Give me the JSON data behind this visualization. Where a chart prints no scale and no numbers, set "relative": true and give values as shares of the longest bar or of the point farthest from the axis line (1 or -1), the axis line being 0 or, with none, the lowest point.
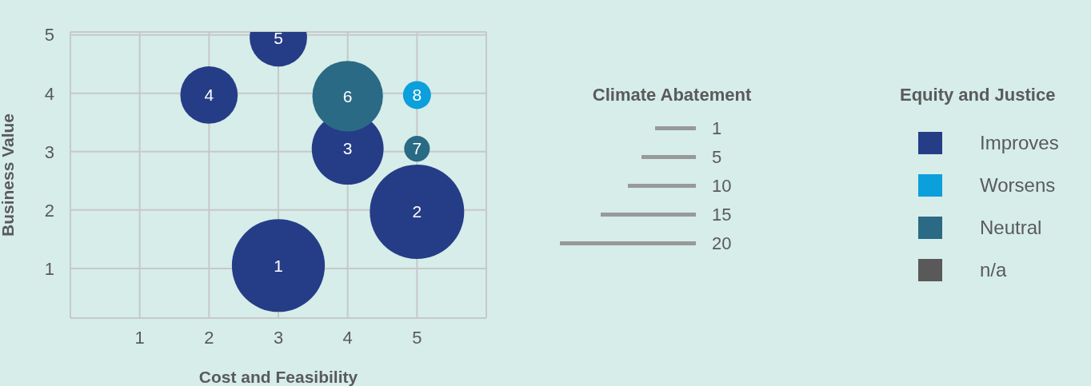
{
  "chart_data": [
    {
      "type": "bubble",
      "xlabel": "Cost and Feasibility",
      "ylabel": "Business Value",
      "legend_title": "Equity and Justice",
      "legend": "right",
      "xlim": [
        0,
        6
      ],
      "xticks": [
        1,
        2,
        3,
        4,
        5
      ],
      "ylim": [
        0.15,
        5.05
      ],
      "yticks": [
        1,
        2,
        3,
        4,
        5
      ],
      "grid": true,
      "annotations": [
        {
          "text": "1",
          "x": 3,
          "y": 1.05
        },
        {
          "text": "2",
          "x": 5,
          "y": 1.97
        },
        {
          "text": "3",
          "x": 4,
          "y": 3.05
        },
        {
          "text": "4",
          "x": 2,
          "y": 3.97
        },
        {
          "text": "5",
          "x": 3,
          "y": 4.95
        },
        {
          "text": "6",
          "x": 4,
          "y": 3.95
        },
        {
          "text": "7",
          "x": 5,
          "y": 3.05
        },
        {
          "text": "8",
          "x": 5,
          "y": 3.97
        }
      ],
      "series": [
        {
          "name": "Improves",
          "color": "#253d87",
          "x": [
            3,
            5,
            4,
            2,
            3
          ],
          "values": [
            1.05,
            1.97,
            3.05,
            3.97,
            4.95
          ],
          "sizes": [
            0.97,
            1,
            0.58,
            0.37,
            0.37
          ]
        },
        {
          "name": "Worsens",
          "color": "#0b9fdb",
          "x": [
            5
          ],
          "values": [
            3.97
          ],
          "sizes": [
            0.088
          ]
        },
        {
          "name": "Neutral",
          "color": "#2a6a85",
          "x": [
            4,
            5
          ],
          "values": [
            3.95,
            3.05
          ],
          "sizes": [
            0.56,
            0.074
          ]
        },
        {
          "name": "n/a",
          "color": "#595959"
        }
      ]
    },
    {
      "type": "bar",
      "orientation": "horizontal",
      "relative": true,
      "title": "Climate Abatement",
      "categories": [
        "1",
        "5",
        "10",
        "15",
        "20"
      ],
      "values": [
        0.3,
        0.4,
        0.5,
        0.7,
        1
      ],
      "color": "#999999"
    }
  ]
}
